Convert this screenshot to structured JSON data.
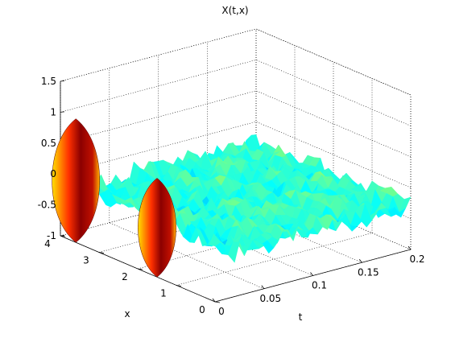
{
  "chart_data": {
    "type": "surface",
    "title": "X(t,x)",
    "xlabel": "t",
    "ylabel": "x",
    "zlabel": "",
    "xlim": [
      0,
      0.2
    ],
    "ylim": [
      0,
      4
    ],
    "zlim": [
      -1,
      1.5
    ],
    "x_ticks": [
      "0",
      "0.05",
      "0.1",
      "0.15",
      "0.2"
    ],
    "y_ticks": [
      "0",
      "1",
      "2",
      "3",
      "4"
    ],
    "z_ticks": [
      "-1",
      "-0.5",
      "0",
      "0.5",
      "1",
      "1.5"
    ],
    "grid": true,
    "colormap": "jet",
    "features": [
      {
        "kind": "peak",
        "t": 0.0,
        "x": 3.6,
        "zmax": 1.0,
        "zmin": -1.0
      },
      {
        "kind": "peak",
        "t": 0.0,
        "x": 1.5,
        "zmax": 0.6,
        "zmin": -1.0
      },
      {
        "kind": "plateau",
        "t_range": [
          0.02,
          0.2
        ],
        "x_range": [
          0,
          4
        ],
        "z_approx": -0.3,
        "noise_amplitude": 0.15
      }
    ]
  },
  "colors": {
    "axis": "#000000",
    "grid": "#000000",
    "plateau_dark": "#27a7e6",
    "plateau_light": "#5ff2d8",
    "peak_core": "#8b0000",
    "peak_mid": "#ff3000",
    "peak_edge": "#ffe000"
  }
}
